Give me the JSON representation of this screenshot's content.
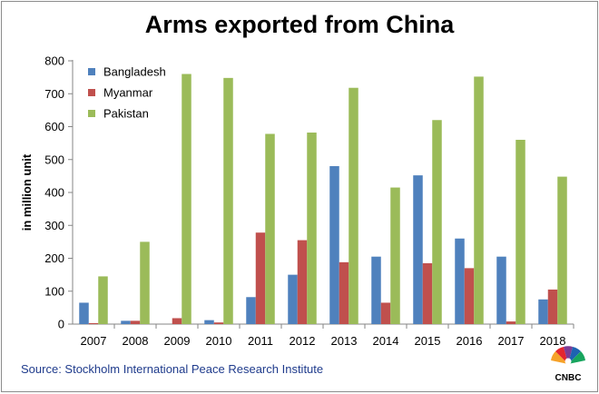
{
  "title": "Arms exported from China",
  "source": "Source: Stockholm International Peace Research Institute",
  "logo_text": "CNBC",
  "colors": {
    "Bangladesh": "#4f81bd",
    "Myanmar": "#c0504d",
    "Pakistan": "#9bbb59",
    "axis": "#868686"
  },
  "chart_data": {
    "type": "bar",
    "title": "Arms exported from China",
    "xlabel": "",
    "ylabel": "in million unit",
    "ylim": [
      0,
      800
    ],
    "yticks": [
      0,
      100,
      200,
      300,
      400,
      500,
      600,
      700,
      800
    ],
    "grid": false,
    "legend": "top-left",
    "categories": [
      "2007",
      "2008",
      "2009",
      "2010",
      "2011",
      "2012",
      "2013",
      "2014",
      "2015",
      "2016",
      "2017",
      "2018"
    ],
    "series": [
      {
        "name": "Bangladesh",
        "values": [
          65,
          10,
          0,
          12,
          82,
          150,
          480,
          205,
          452,
          260,
          205,
          75
        ]
      },
      {
        "name": "Myanmar",
        "values": [
          3,
          10,
          18,
          5,
          278,
          255,
          188,
          65,
          185,
          170,
          8,
          105
        ]
      },
      {
        "name": "Pakistan",
        "values": [
          145,
          250,
          760,
          748,
          578,
          582,
          718,
          415,
          620,
          752,
          560,
          448
        ]
      }
    ]
  }
}
